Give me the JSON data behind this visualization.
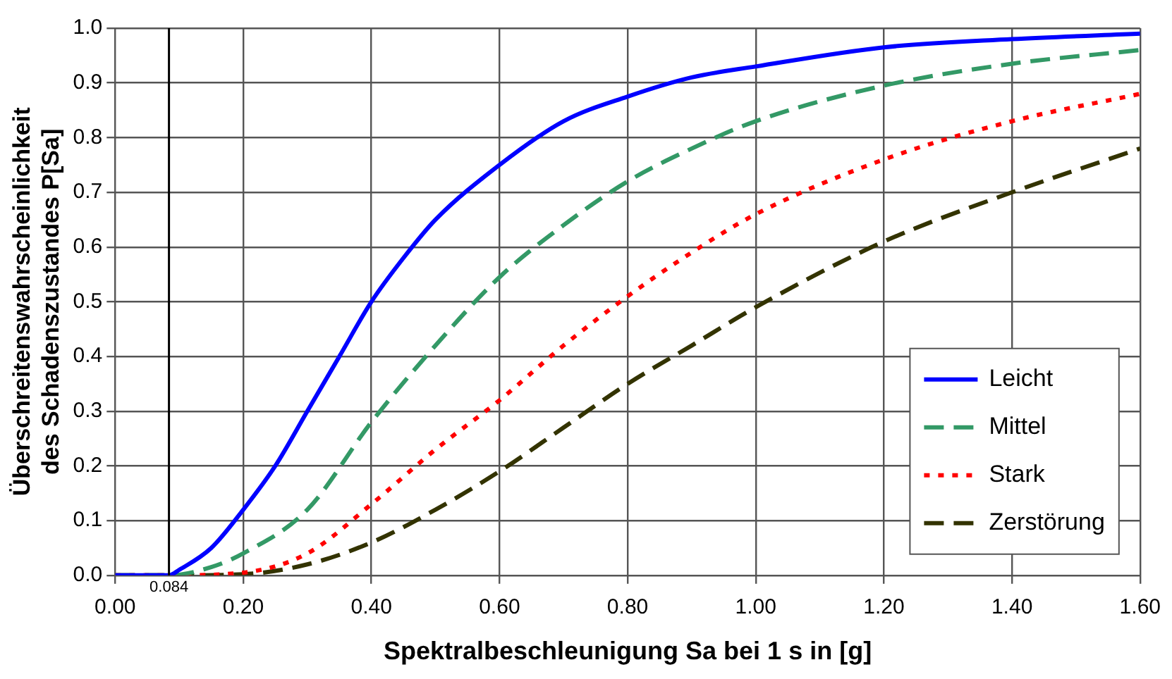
{
  "chart_data": {
    "type": "line",
    "xlabel": "Spektralbeschleunigung Sa bei 1 s in [g]",
    "ylabel": "Überschreitenswahrscheinlichkeit\ndes Schadenszustandes P[Sa]",
    "xlim": [
      0,
      1.6
    ],
    "xticks": [
      {
        "value": 0,
        "label": "0.00"
      },
      {
        "value": 0.2,
        "label": "0.20"
      },
      {
        "value": 0.4,
        "label": "0.40"
      },
      {
        "value": 0.6,
        "label": "0.60"
      },
      {
        "value": 0.8,
        "label": "0.80"
      },
      {
        "value": 1,
        "label": "1.00"
      },
      {
        "value": 1.2,
        "label": "1.20"
      },
      {
        "value": 1.4,
        "label": "1.40"
      },
      {
        "value": 1.6,
        "label": "1.60"
      }
    ],
    "ylim": [
      0,
      1
    ],
    "yticks": [
      {
        "value": 0,
        "label": "0.0"
      },
      {
        "value": 0.1,
        "label": "0.1"
      },
      {
        "value": 0.2,
        "label": "0.2"
      },
      {
        "value": 0.3,
        "label": "0.3"
      },
      {
        "value": 0.4,
        "label": "0.4"
      },
      {
        "value": 0.5,
        "label": "0.5"
      },
      {
        "value": 0.6,
        "label": "0.6"
      },
      {
        "value": 0.7,
        "label": "0.7"
      },
      {
        "value": 0.8,
        "label": "0.8"
      },
      {
        "value": 0.9,
        "label": "0.9"
      },
      {
        "value": 1,
        "label": "1.0"
      }
    ],
    "grid": true,
    "legend": "bottom right",
    "marker": "none",
    "ref_lines": [
      {
        "axis": "x",
        "value": 0.084,
        "label": "0.084",
        "color": "#000000"
      }
    ],
    "series": [
      {
        "name": "Leicht",
        "color": "#0000ff",
        "line_style": "solid",
        "x": [
          0,
          0.084,
          0.1,
          0.15,
          0.2,
          0.25,
          0.3,
          0.35,
          0.4,
          0.45,
          0.5,
          0.6,
          0.7,
          0.8,
          0.9,
          1,
          1.2,
          1.4,
          1.6
        ],
        "values": [
          0,
          0,
          0.01,
          0.05,
          0.12,
          0.2,
          0.3,
          0.4,
          0.5,
          0.58,
          0.65,
          0.75,
          0.83,
          0.875,
          0.91,
          0.93,
          0.965,
          0.98,
          0.99
        ]
      },
      {
        "name": "Mittel",
        "color": "#339966",
        "line_style": "dashed",
        "x": [
          0,
          0.084,
          0.15,
          0.2,
          0.3,
          0.4,
          0.5,
          0.6,
          0.7,
          0.8,
          0.9,
          1,
          1.2,
          1.4,
          1.6
        ],
        "values": [
          0,
          0,
          0.015,
          0.04,
          0.12,
          0.28,
          0.42,
          0.545,
          0.64,
          0.72,
          0.78,
          0.83,
          0.895,
          0.935,
          0.96
        ]
      },
      {
        "name": "Stark",
        "color": "#ff0000",
        "line_style": "dotted",
        "x": [
          0,
          0.084,
          0.2,
          0.3,
          0.4,
          0.5,
          0.6,
          0.7,
          0.8,
          0.9,
          1,
          1.2,
          1.4,
          1.6
        ],
        "values": [
          0,
          0,
          0.005,
          0.04,
          0.13,
          0.23,
          0.32,
          0.42,
          0.51,
          0.59,
          0.66,
          0.76,
          0.83,
          0.88
        ]
      },
      {
        "name": "Zerstörung",
        "color": "#333300",
        "line_style": "dashed",
        "x": [
          0,
          0.084,
          0.2,
          0.3,
          0.4,
          0.5,
          0.6,
          0.7,
          0.8,
          0.9,
          1,
          1.2,
          1.4,
          1.6
        ],
        "values": [
          0,
          0,
          0.002,
          0.02,
          0.06,
          0.12,
          0.19,
          0.27,
          0.35,
          0.42,
          0.49,
          0.61,
          0.7,
          0.78
        ]
      }
    ]
  }
}
